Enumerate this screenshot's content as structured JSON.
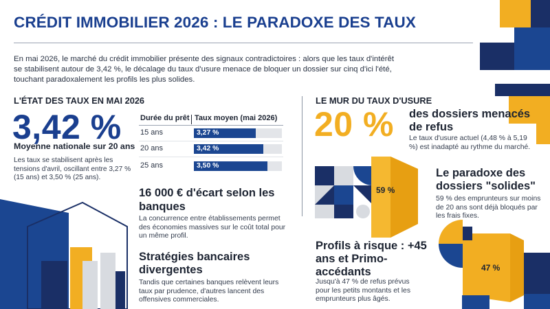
{
  "header": {
    "title": "CRÉDIT IMMOBILIER 2026 : LE PARADOXE DES TAUX",
    "intro": "En mai 2026, le marché du crédit immobilier présente des signaux contradictoires : alors que les taux d'intérêt se stabilisent autour de 3,42 %, le décalage du taux d'usure menace de bloquer un dossier sur cinq d'ici l'été, touchant paradoxalement les profils les plus solides."
  },
  "rates": {
    "section_title": "L'ÉTAT DES TAUX EN MAI 2026",
    "headline_value": "3,42 %",
    "headline_caption": "Moyenne nationale sur 20 ans",
    "note": "Les taux se stabilisent après les tensions d'avril, oscillant entre 3,27 % (15 ans) et 3,50 % (25 ans).",
    "table": {
      "col_duration": "Durée du prêt",
      "col_rate": "Taux moyen (mai 2026)",
      "rows": [
        {
          "duration": "15 ans",
          "rate_label": "3,27 %",
          "rate": 3.27
        },
        {
          "duration": "20 ans",
          "rate_label": "3,42 %",
          "rate": 3.42
        },
        {
          "duration": "25 ans",
          "rate_label": "3,50 %",
          "rate": 3.5
        }
      ]
    }
  },
  "ecart": {
    "heading": "16 000 € d'écart selon les banques",
    "text": "La concurrence entre établissements permet des économies massives sur le coût total pour un même profil."
  },
  "strategies": {
    "heading": "Stratégies bancaires divergentes",
    "text": "Tandis que certaines banques relèvent leurs taux par prudence, d'autres lancent des offensives commerciales."
  },
  "usure": {
    "section_title": "LE MUR DU TAUX D'USURE",
    "headline_value": "20 %",
    "heading": "des dossiers menacés de refus",
    "text": "Le taux d'usure actuel (4,48 % à 5,19 %) est inadapté au rythme du marché."
  },
  "solides": {
    "badge": "59 %",
    "value": 59,
    "heading": "Le paradoxe des dossiers \"solides\"",
    "text": "59 % des emprunteurs sur moins de 20 ans sont déjà bloqués par les frais fixes."
  },
  "risque": {
    "badge": "47 %",
    "value": 47,
    "heading": "Profils à risque : +45 ans et Primo-accédants",
    "text": "Jusqu'à 47 % de refus prévus pour les petits montants et les emprunteurs plus âgés."
  },
  "colors": {
    "navy": "#1a2f66",
    "blue": "#1b4691",
    "yellow": "#f2ae22",
    "gray": "#d8dbe0"
  }
}
